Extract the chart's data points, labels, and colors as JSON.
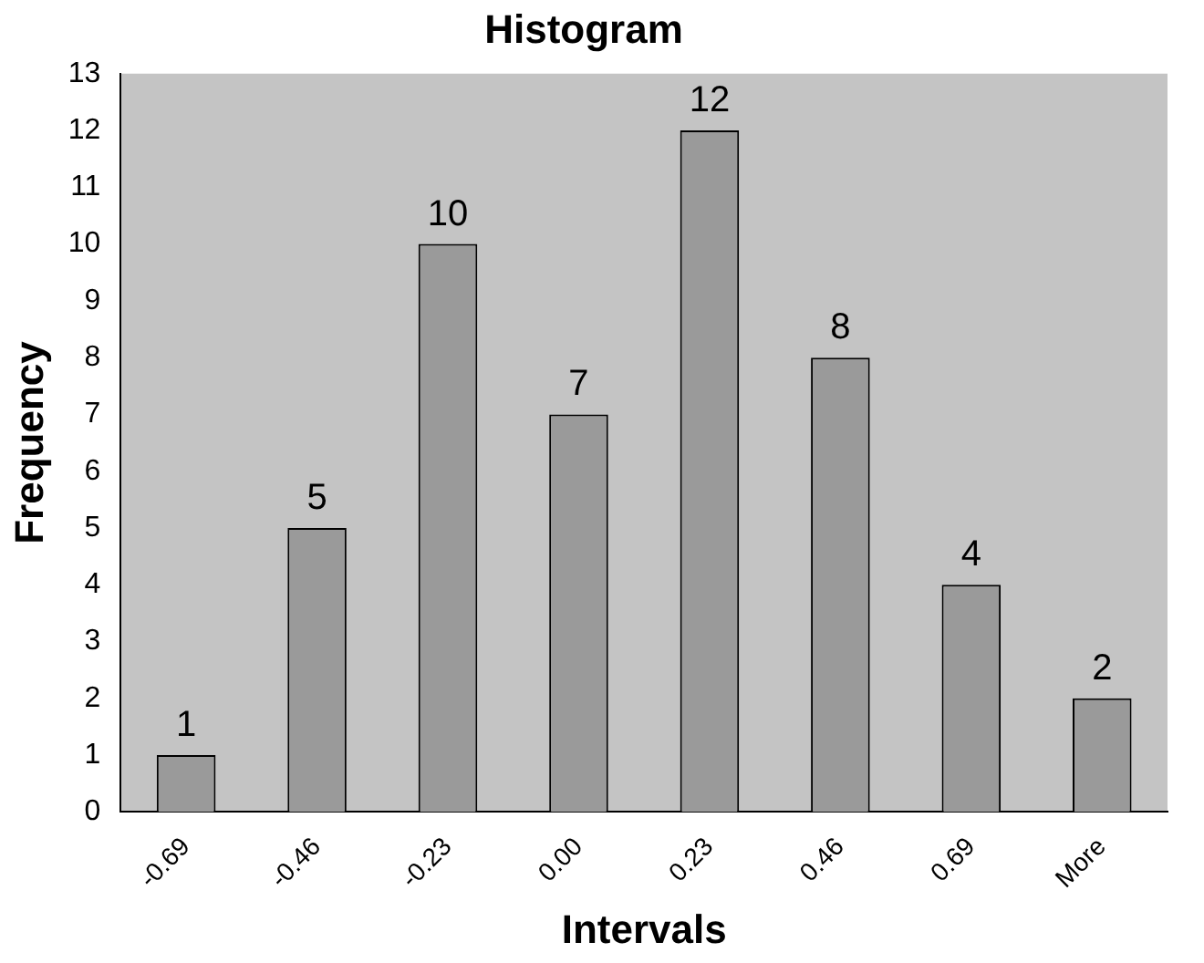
{
  "chart_data": {
    "type": "bar",
    "title": "Histogram",
    "xlabel": "Intervals",
    "ylabel": "Frequency",
    "categories": [
      "-0.69",
      "-0.46",
      "-0.23",
      "0.00",
      "0.23",
      "0.46",
      "0.69",
      "More"
    ],
    "values": [
      1,
      5,
      10,
      7,
      12,
      8,
      4,
      2
    ],
    "color": "#9a9a9a",
    "ylim": [
      0,
      13
    ],
    "yticks": [
      0,
      1,
      2,
      3,
      4,
      5,
      6,
      7,
      8,
      9,
      10,
      11,
      12,
      13
    ],
    "grid": false,
    "legend": false,
    "data_labels": true
  }
}
